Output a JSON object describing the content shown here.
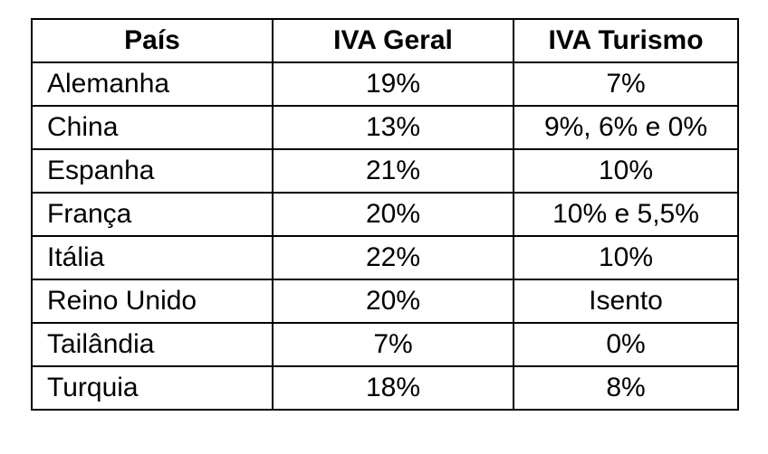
{
  "table": {
    "headers": [
      "País",
      "IVA Geral",
      "IVA Turismo"
    ],
    "rows": [
      {
        "pais": "Alemanha",
        "iva_geral": "19%",
        "iva_turismo": "7%"
      },
      {
        "pais": "China",
        "iva_geral": "13%",
        "iva_turismo": "9%, 6% e 0%"
      },
      {
        "pais": "Espanha",
        "iva_geral": "21%",
        "iva_turismo": "10%"
      },
      {
        "pais": "França",
        "iva_geral": "20%",
        "iva_turismo": "10% e 5,5%"
      },
      {
        "pais": "Itália",
        "iva_geral": "22%",
        "iva_turismo": "10%"
      },
      {
        "pais": "Reino Unido",
        "iva_geral": "20%",
        "iva_turismo": "Isento"
      },
      {
        "pais": "Tailândia",
        "iva_geral": "7%",
        "iva_turismo": "0%"
      },
      {
        "pais": "Turquia",
        "iva_geral": "18%",
        "iva_turismo": "8%"
      }
    ]
  }
}
